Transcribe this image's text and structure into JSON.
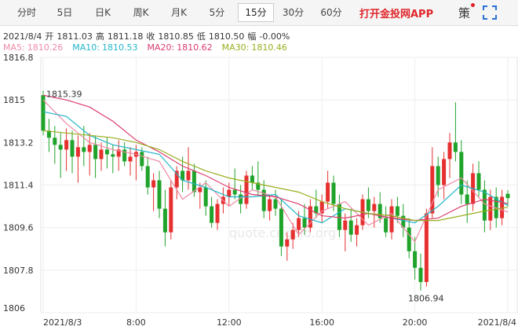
{
  "tabs": [
    "分时",
    "5日",
    "日K",
    "周K",
    "月K",
    "5分",
    "15分",
    "30分",
    "60分"
  ],
  "active_tab": 6,
  "app_link": "打开金投网APP",
  "strategy": "策",
  "info": [
    "2021/8/4",
    "开",
    "1811.03",
    "高",
    "1811.18",
    "收",
    "1810.85",
    "低",
    "1810.50",
    "幅",
    "-0.00%"
  ],
  "chart_data": {
    "type": "candlestick",
    "watermark": "quote.cngold.org",
    "up_color": "#e5302f",
    "down_color": "#1fa32a",
    "ylim": [
      1806,
      1816.8
    ],
    "yticks": [
      1816.8,
      1815,
      1813.2,
      1811.4,
      1809.6,
      1807.8,
      1806
    ],
    "xlim": [
      0,
      80
    ],
    "xticks": [
      {
        "value": 0,
        "label": "2021/8/3"
      },
      {
        "value": 16,
        "label": "8:00"
      },
      {
        "value": 32,
        "label": "12:00"
      },
      {
        "value": 48,
        "label": "16:00"
      },
      {
        "value": 64,
        "label": "20:00"
      },
      {
        "value": 80,
        "label": "2021/8/4"
      }
    ],
    "grid": true,
    "open": [
      1815.2,
      1813.7,
      1813.4,
      1813.1,
      1812.9,
      1813.3,
      1812.6,
      1813.0,
      1812.8,
      1813.1,
      1812.5,
      1812.9,
      1812.7,
      1812.6,
      1812.9,
      1812.4,
      1812.6,
      1812.8,
      1812.2,
      1811.3,
      1811.6,
      1810.4,
      1809.4,
      1811.3,
      1812.0,
      1811.6,
      1812.0,
      1811.1,
      1811.3,
      1810.5,
      1809.8,
      1810.6,
      1810.9,
      1811.2,
      1811.0,
      1810.6,
      1811.8,
      1811.5,
      1811.2,
      1810.3,
      1810.8,
      1810.4,
      1808.8,
      1809.1,
      1809.5,
      1810.0,
      1809.6,
      1810.5,
      1810.2,
      1810.7,
      1811.5,
      1810.6,
      1809.5,
      1809.9,
      1809.3,
      1809.7,
      1810.8,
      1810.3,
      1810.6,
      1810.0,
      1809.4,
      1810.5,
      1810.1,
      1809.6,
      1808.6,
      1807.9,
      1807.3,
      1810.2,
      1812.2,
      1811.4,
      1812.5,
      1813.2,
      1812.8,
      1811.0,
      1810.6,
      1811.9,
      1811.2,
      1809.9,
      1810.9,
      1810.0,
      1811.03
    ],
    "high": [
      1815.39,
      1814.2,
      1813.9,
      1813.6,
      1813.8,
      1813.7,
      1813.5,
      1813.9,
      1813.6,
      1813.5,
      1813.2,
      1813.4,
      1813.1,
      1813.3,
      1813.2,
      1813.0,
      1813.1,
      1813.0,
      1812.6,
      1811.9,
      1812.0,
      1811.2,
      1811.6,
      1812.2,
      1812.6,
      1813.0,
      1812.3,
      1811.5,
      1811.6,
      1810.9,
      1810.8,
      1811.3,
      1811.5,
      1812.1,
      1811.4,
      1812.0,
      1812.2,
      1812.4,
      1811.6,
      1811.0,
      1811.2,
      1810.8,
      1809.4,
      1809.8,
      1810.3,
      1810.6,
      1810.8,
      1811.2,
      1811.0,
      1812.0,
      1811.8,
      1811.0,
      1810.2,
      1810.4,
      1810.0,
      1811.0,
      1811.3,
      1810.9,
      1811.1,
      1810.5,
      1810.8,
      1810.9,
      1810.6,
      1810.0,
      1809.2,
      1808.5,
      1810.4,
      1813.0,
      1812.6,
      1812.8,
      1813.6,
      1814.9,
      1813.3,
      1811.6,
      1812.3,
      1812.4,
      1811.6,
      1811.2,
      1811.3,
      1811.2,
      1811.18
    ],
    "low": [
      1813.5,
      1812.8,
      1812.3,
      1811.7,
      1812.0,
      1811.9,
      1811.5,
      1812.2,
      1811.8,
      1811.7,
      1812.0,
      1812.1,
      1811.9,
      1812.0,
      1812.2,
      1811.8,
      1811.6,
      1812.0,
      1811.0,
      1810.3,
      1810.0,
      1808.8,
      1809.1,
      1810.8,
      1811.1,
      1811.2,
      1810.9,
      1810.4,
      1810.1,
      1809.6,
      1809.5,
      1810.2,
      1810.5,
      1810.8,
      1810.2,
      1810.4,
      1811.2,
      1811.0,
      1810.0,
      1809.9,
      1810.1,
      1808.4,
      1808.2,
      1808.7,
      1809.2,
      1809.3,
      1809.4,
      1810.0,
      1809.8,
      1810.4,
      1810.3,
      1809.2,
      1808.6,
      1809.0,
      1808.8,
      1809.5,
      1810.0,
      1809.6,
      1809.8,
      1809.2,
      1809.1,
      1809.8,
      1809.2,
      1808.3,
      1807.4,
      1806.94,
      1807.1,
      1810.0,
      1810.9,
      1810.8,
      1811.7,
      1812.4,
      1810.6,
      1809.8,
      1810.3,
      1810.9,
      1809.4,
      1809.5,
      1809.6,
      1809.7,
      1810.5
    ],
    "close": [
      1813.7,
      1813.4,
      1813.1,
      1812.9,
      1813.3,
      1812.6,
      1813.0,
      1812.8,
      1813.1,
      1812.5,
      1812.9,
      1812.7,
      1812.6,
      1812.9,
      1812.4,
      1812.6,
      1812.8,
      1812.2,
      1811.3,
      1811.6,
      1810.4,
      1809.4,
      1811.3,
      1812.0,
      1811.6,
      1812.0,
      1811.1,
      1811.3,
      1810.5,
      1809.8,
      1810.6,
      1810.9,
      1811.2,
      1811.0,
      1810.6,
      1811.8,
      1811.5,
      1811.2,
      1810.3,
      1810.8,
      1810.4,
      1808.8,
      1809.1,
      1809.5,
      1810.0,
      1809.6,
      1810.5,
      1810.2,
      1810.7,
      1811.5,
      1810.6,
      1809.5,
      1809.9,
      1809.3,
      1809.7,
      1810.8,
      1810.3,
      1810.6,
      1810.0,
      1809.4,
      1810.5,
      1810.1,
      1809.6,
      1808.6,
      1807.9,
      1807.3,
      1810.2,
      1812.2,
      1811.4,
      1812.5,
      1813.2,
      1812.8,
      1811.0,
      1810.6,
      1811.9,
      1811.2,
      1809.9,
      1810.9,
      1810.0,
      1810.9,
      1810.85
    ],
    "ma_x": [
      0,
      4,
      8,
      12,
      16,
      20,
      24,
      28,
      32,
      36,
      40,
      44,
      48,
      52,
      56,
      60,
      64,
      68,
      72,
      76,
      80
    ],
    "series": [
      {
        "name": "MA5:",
        "color": "#f08aa6",
        "values": [
          1815.0,
          1814.0,
          1813.2,
          1812.9,
          1812.7,
          1812.4,
          1810.8,
          1811.5,
          1810.5,
          1811.2,
          1810.9,
          1809.3,
          1810.3,
          1810.7,
          1809.7,
          1810.2,
          1809.0,
          1811.2,
          1811.7,
          1810.6,
          1810.26
        ]
      },
      {
        "name": "MA10:",
        "color": "#22b5c8",
        "values": [
          1814.5,
          1814.3,
          1813.5,
          1813.1,
          1812.9,
          1812.7,
          1811.6,
          1811.3,
          1810.9,
          1810.9,
          1811.0,
          1810.1,
          1809.8,
          1810.4,
          1810.2,
          1810.0,
          1809.8,
          1810.5,
          1811.4,
          1811.1,
          1810.53
        ]
      },
      {
        "name": "MA20:",
        "color": "#dd3d6e",
        "values": [
          1815.2,
          1815.0,
          1814.7,
          1814.1,
          1813.3,
          1812.8,
          1812.2,
          1811.8,
          1811.3,
          1811.0,
          1810.9,
          1810.6,
          1810.1,
          1810.0,
          1810.2,
          1810.0,
          1809.9,
          1810.0,
          1810.5,
          1810.8,
          1810.62
        ]
      },
      {
        "name": "MA30:",
        "color": "#9aae1e",
        "values": [
          1813.7,
          1813.6,
          1813.5,
          1813.4,
          1813.2,
          1812.9,
          1812.4,
          1812.0,
          1811.7,
          1811.5,
          1811.3,
          1811.1,
          1810.7,
          1810.4,
          1810.2,
          1810.1,
          1809.9,
          1809.9,
          1810.1,
          1810.3,
          1810.46
        ]
      }
    ]
  }
}
